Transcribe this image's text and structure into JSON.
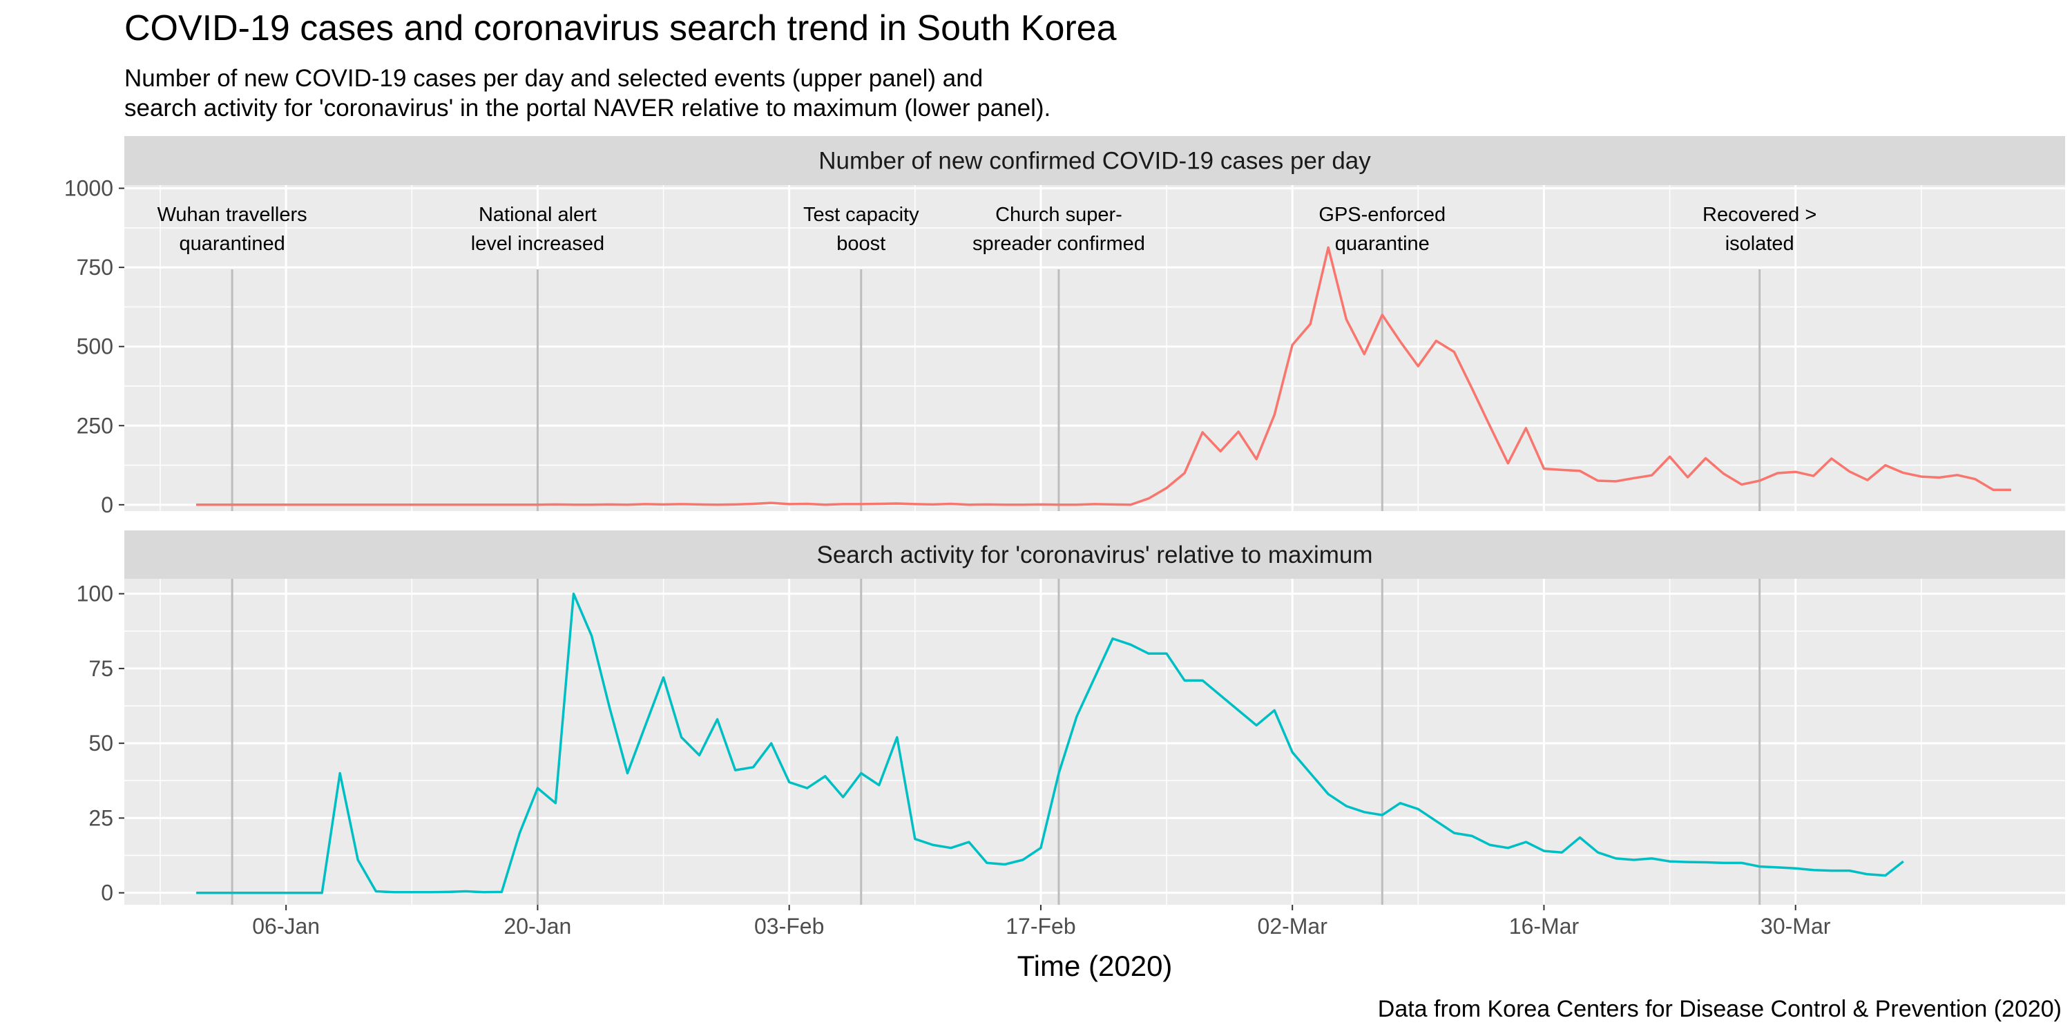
{
  "title": "COVID-19 cases and coronavirus search trend in South Korea",
  "subtitle_lines": [
    "Number of new COVID-19 cases per day and selected events (upper panel) and",
    "search activity for 'coronavirus' in the portal NAVER relative to maximum (lower panel)."
  ],
  "caption": "Data from Korea Centers for Disease Control & Prevention (2020)",
  "chart_data": {
    "type": "line",
    "x_start_date": "2020-01-01",
    "x_label_format": "DD-Mon",
    "xlabel": "Time (2020)",
    "xlim": [
      "2019-12-28",
      "2020-04-14"
    ],
    "x_ticks": [
      "2020-01-06",
      "2020-01-20",
      "2020-02-03",
      "2020-02-17",
      "2020-03-02",
      "2020-03-16",
      "2020-03-30"
    ],
    "x_tick_labels": [
      "06-Jan",
      "20-Jan",
      "03-Feb",
      "17-Feb",
      "02-Mar",
      "16-Mar",
      "30-Mar"
    ],
    "grid": true,
    "events": [
      {
        "date": "2020-01-03",
        "label_lines": [
          "Wuhan travellers",
          "quarantined"
        ]
      },
      {
        "date": "2020-01-20",
        "label_lines": [
          "National alert",
          "level increased"
        ]
      },
      {
        "date": "2020-02-07",
        "label_lines": [
          "Test capacity",
          "boost"
        ]
      },
      {
        "date": "2020-02-18",
        "label_lines": [
          "Church super-",
          "spreader confirmed"
        ]
      },
      {
        "date": "2020-03-07",
        "label_lines": [
          "GPS-enforced",
          "quarantine"
        ]
      },
      {
        "date": "2020-03-28",
        "label_lines": [
          "Recovered >",
          "isolated"
        ]
      }
    ],
    "panels": [
      {
        "strip": "Number of new confirmed COVID-19 cases per day",
        "ylim": [
          -20,
          1010
        ],
        "y_ticks": [
          0,
          250,
          500,
          750,
          1000
        ],
        "series": [
          {
            "color": "#F8766D",
            "x_offset_days": 0,
            "values": [
              0,
              0,
              0,
              0,
              0,
              0,
              0,
              0,
              0,
              0,
              0,
              0,
              0,
              0,
              0,
              0,
              0,
              0,
              0,
              0,
              1,
              0,
              0,
              1,
              0,
              2,
              1,
              2,
              1,
              0,
              1,
              3,
              6,
              2,
              3,
              0,
              2,
              2,
              3,
              4,
              2,
              1,
              3,
              0,
              1,
              0,
              0,
              1,
              0,
              0,
              2,
              1,
              0,
              20,
              53,
              100,
              229,
              169,
              231,
              144,
              284,
              505,
              571,
              813,
              586,
              476,
              600,
              516,
              438,
              518,
              483,
              367,
              248,
              131,
              242,
              114,
              110,
              107,
              76,
              74,
              84,
              93,
              152,
              87,
              147,
              98,
              64,
              76,
              100,
              104,
              91,
              146,
              105,
              78,
              125,
              101,
              89,
              86,
              94,
              81,
              47,
              47
            ]
          }
        ]
      },
      {
        "strip": "Search activity for 'coronavirus' relative to maximum",
        "ylim": [
          -4,
          105
        ],
        "y_ticks": [
          0,
          25,
          50,
          75,
          100
        ],
        "series": [
          {
            "color": "#00BFC4",
            "x_offset_days": 0,
            "values": [
              0,
              0,
              0,
              0,
              0,
              0,
              0,
              0,
              40,
              11,
              0.5,
              0.2,
              0.2,
              0.2,
              0.3,
              0.5,
              0.2,
              0.3,
              20,
              35,
              30,
              100,
              86,
              62,
              40,
              56,
              72,
              52,
              46,
              58,
              41,
              42,
              50,
              37,
              35,
              39,
              32,
              40,
              36,
              52,
              18,
              16,
              15,
              17,
              10,
              9.5,
              11,
              15,
              40,
              59,
              72,
              85,
              83,
              80,
              80,
              71,
              71,
              66,
              61,
              56,
              61,
              47,
              40,
              33,
              29,
              27,
              26,
              30,
              28,
              24,
              20,
              19,
              16,
              15,
              17,
              14,
              13.5,
              18.5,
              13.5,
              11.5,
              11,
              11.5,
              10.5,
              10.3,
              10.2,
              10,
              10,
              8.8,
              8.5,
              8.2,
              7.6,
              7.4,
              7.4,
              6.2,
              5.8,
              10.5
            ]
          }
        ]
      }
    ]
  }
}
